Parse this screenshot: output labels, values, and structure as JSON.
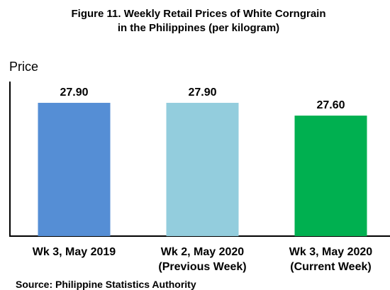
{
  "chart_data": {
    "type": "bar",
    "title": "Figure 11. Weekly Retail Prices of White Corngrain\nin the Philippines (per kilogram)",
    "y_label": "Price",
    "categories": [
      "Wk 3, May 2019",
      "Wk 2, May 2020\n(Previous Week)",
      "Wk 3, May 2020\n(Current Week)"
    ],
    "values": [
      27.9,
      27.9,
      27.6
    ],
    "value_labels": [
      "27.90",
      "27.90",
      "27.60"
    ],
    "colors": [
      "#558ed5",
      "#93cddd",
      "#00b050"
    ],
    "ylim": [
      24.77,
      28.4
    ],
    "source": "Source: Philippine Statistics Authority"
  }
}
